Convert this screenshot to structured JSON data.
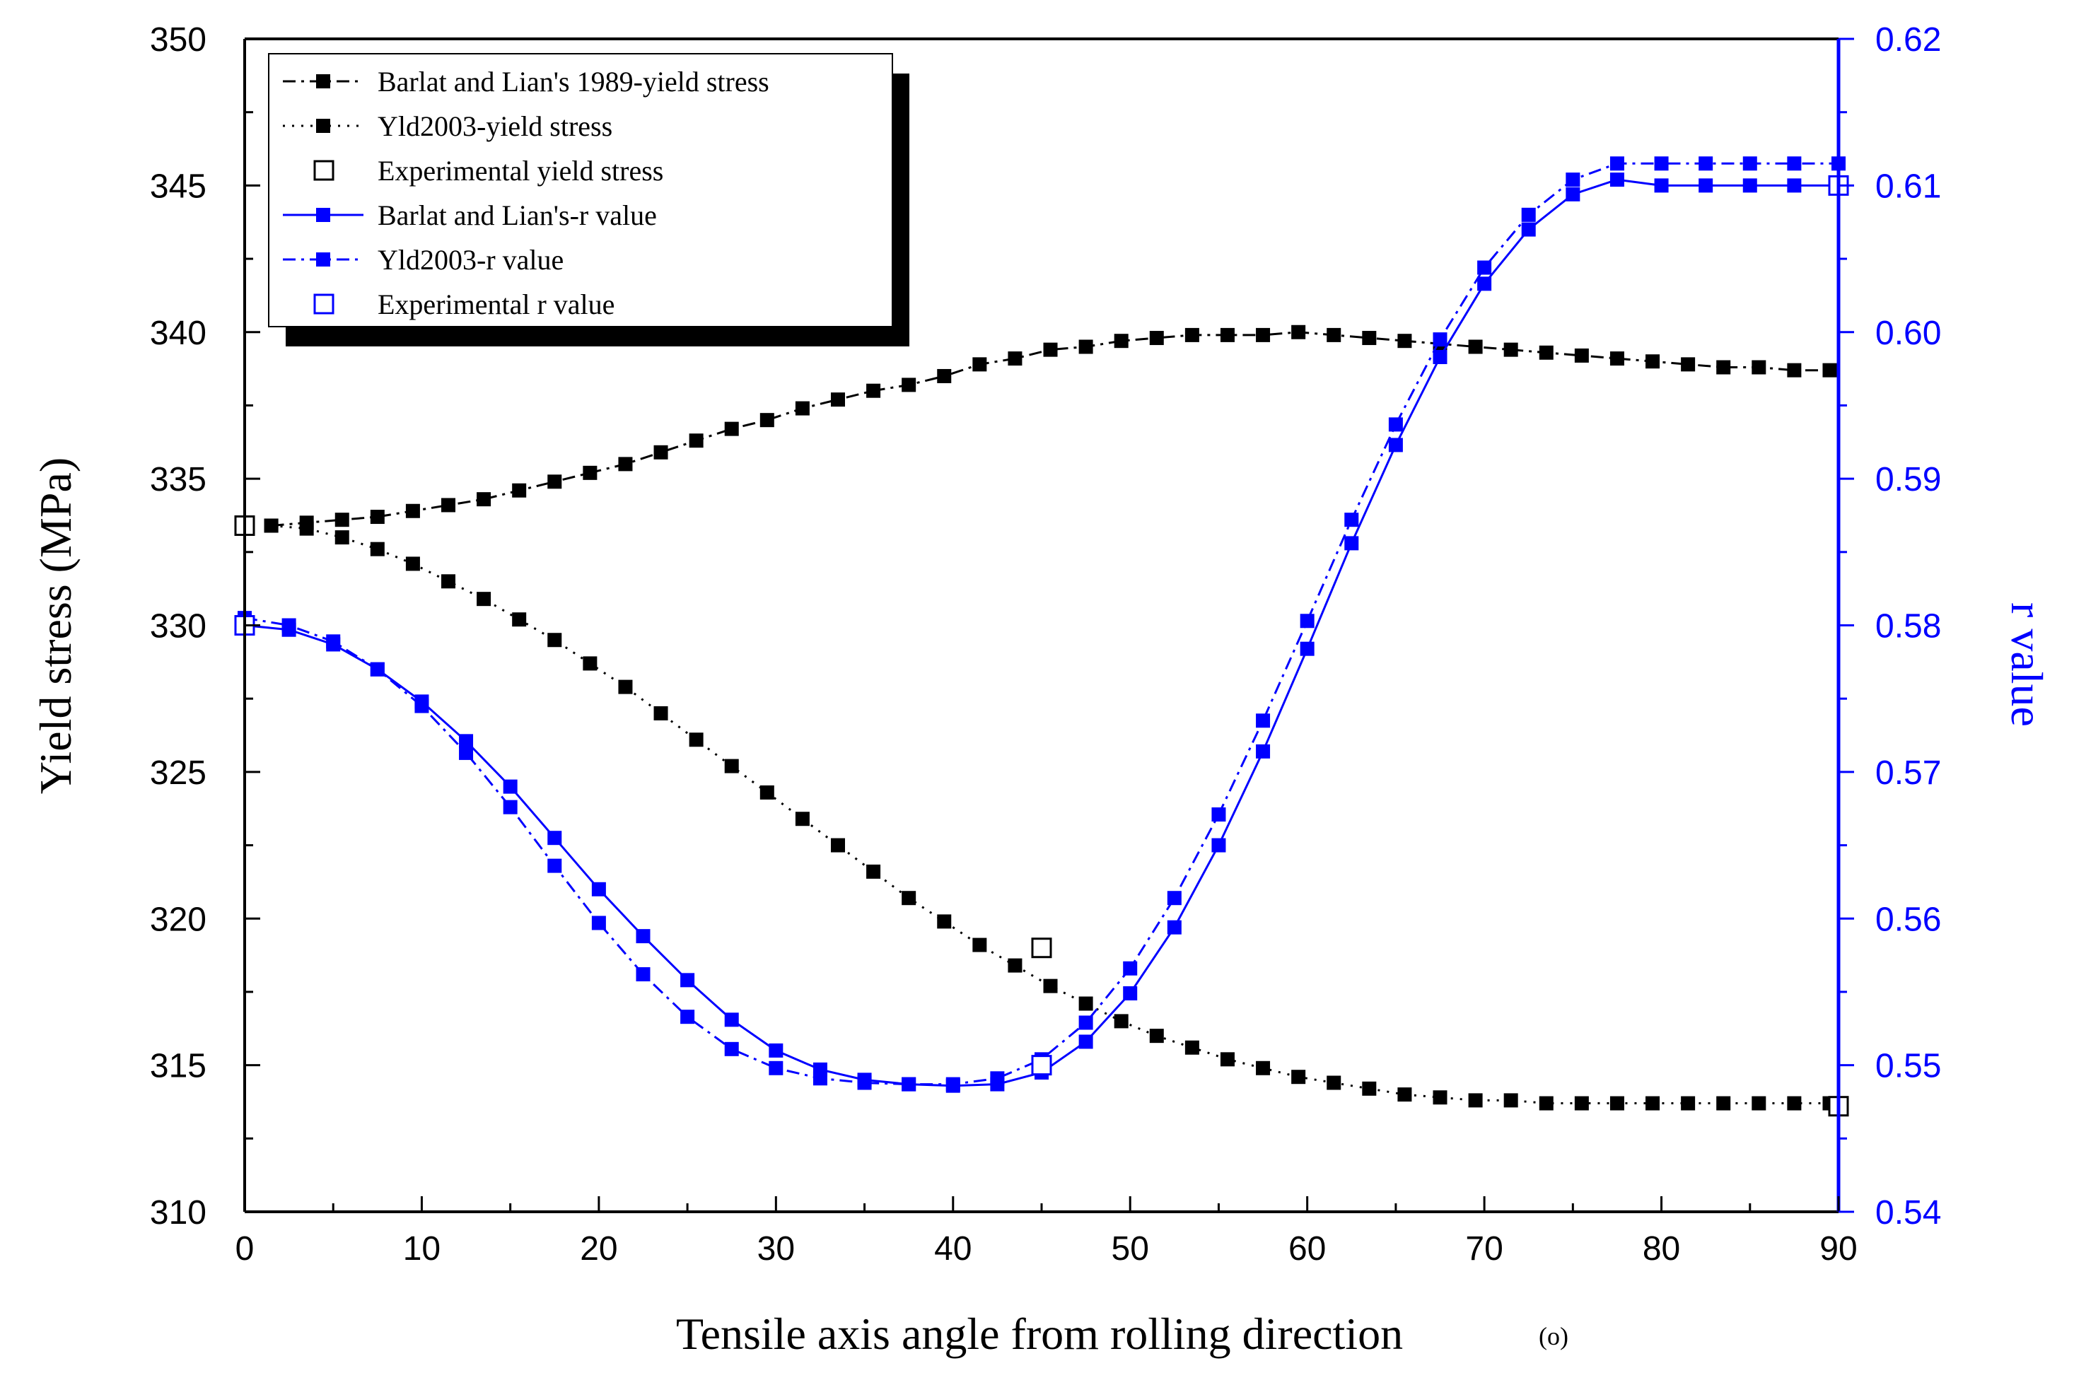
{
  "chart_data": {
    "type": "line",
    "title": "",
    "xlabel": "Tensile axis angle from rolling direction",
    "xunit": "(o)",
    "ylabel": "Yield stress (MPa)",
    "y2label": "r value",
    "xlim": [
      0,
      90
    ],
    "ylim": [
      310,
      350
    ],
    "y2lim": [
      0.54,
      0.62
    ],
    "xticks": [
      0,
      10,
      20,
      30,
      40,
      50,
      60,
      70,
      80,
      90
    ],
    "yticks": [
      310,
      315,
      320,
      325,
      330,
      335,
      340,
      345,
      350
    ],
    "y2ticks": [
      "0.54",
      "0.55",
      "0.56",
      "0.57",
      "0.58",
      "0.59",
      "0.60",
      "0.61",
      "0.62"
    ],
    "grid": false,
    "legend_position": "top-left",
    "colors": {
      "black": "#000000",
      "blue": "#0000ff"
    },
    "series": [
      {
        "name": "Barlat and Lian's 1989-yield stress",
        "axis": "left",
        "color": "#000000",
        "line": "dashdot",
        "marker": "filled-square",
        "x": [
          1.5,
          3.5,
          5.5,
          7.5,
          9.5,
          11.5,
          13.5,
          15.5,
          17.5,
          19.5,
          21.5,
          23.5,
          25.5,
          27.5,
          29.5,
          31.5,
          33.5,
          35.5,
          37.5,
          39.5,
          41.5,
          43.5,
          45.5,
          47.5,
          49.5,
          51.5,
          53.5,
          55.5,
          57.5,
          59.5,
          61.5,
          63.5,
          65.5,
          67.5,
          69.5,
          71.5,
          73.5,
          75.5,
          77.5,
          79.5,
          81.5,
          83.5,
          85.5,
          87.5,
          89.5
        ],
        "y": [
          333.4,
          333.5,
          333.6,
          333.7,
          333.9,
          334.1,
          334.3,
          334.6,
          334.9,
          335.2,
          335.5,
          335.9,
          336.3,
          336.7,
          337.0,
          337.4,
          337.7,
          338.0,
          338.2,
          338.5,
          338.9,
          339.1,
          339.4,
          339.5,
          339.7,
          339.8,
          339.9,
          339.9,
          339.9,
          340.0,
          339.9,
          339.8,
          339.7,
          339.6,
          339.5,
          339.4,
          339.3,
          339.2,
          339.1,
          339.0,
          338.9,
          338.8,
          338.8,
          338.7,
          338.7
        ]
      },
      {
        "name": "Yld2003-yield stress",
        "axis": "left",
        "color": "#000000",
        "line": "dotted",
        "marker": "filled-square",
        "x": [
          1.5,
          3.5,
          5.5,
          7.5,
          9.5,
          11.5,
          13.5,
          15.5,
          17.5,
          19.5,
          21.5,
          23.5,
          25.5,
          27.5,
          29.5,
          31.5,
          33.5,
          35.5,
          37.5,
          39.5,
          41.5,
          43.5,
          45.5,
          47.5,
          49.5,
          51.5,
          53.5,
          55.5,
          57.5,
          59.5,
          61.5,
          63.5,
          65.5,
          67.5,
          69.5,
          71.5,
          73.5,
          75.5,
          77.5,
          79.5,
          81.5,
          83.5,
          85.5,
          87.5,
          89.5
        ],
        "y": [
          333.4,
          333.3,
          333.0,
          332.6,
          332.1,
          331.5,
          330.9,
          330.2,
          329.5,
          328.7,
          327.9,
          327.0,
          326.1,
          325.2,
          324.3,
          323.4,
          322.5,
          321.6,
          320.7,
          319.9,
          319.1,
          318.4,
          317.7,
          317.1,
          316.5,
          316.0,
          315.6,
          315.2,
          314.9,
          314.6,
          314.4,
          314.2,
          314.0,
          313.9,
          313.8,
          313.8,
          313.7,
          313.7,
          313.7,
          313.7,
          313.7,
          313.7,
          313.7,
          313.7,
          313.7
        ]
      },
      {
        "name": "Experimental yield stress",
        "axis": "left",
        "color": "#000000",
        "line": "none",
        "marker": "open-square",
        "x": [
          0,
          45,
          90
        ],
        "y": [
          333.4,
          319.0,
          313.6
        ]
      },
      {
        "name": "Barlat and Lian's-r value",
        "axis": "right",
        "color": "#0000ff",
        "line": "solid",
        "marker": "filled-square",
        "x": [
          0,
          2.5,
          5,
          7.5,
          10,
          12.5,
          15,
          17.5,
          20,
          22.5,
          25,
          27.5,
          30,
          32.5,
          35,
          37.5,
          40,
          42.5,
          45,
          47.5,
          50,
          52.5,
          55,
          57.5,
          60,
          62.5,
          65,
          67.5,
          70,
          72.5,
          75,
          77.5,
          80,
          82.5,
          85,
          87.5,
          90
        ],
        "y": [
          0.58,
          0.5797,
          0.5787,
          0.577,
          0.5748,
          0.5721,
          0.569,
          0.5655,
          0.562,
          0.5588,
          0.5558,
          0.5531,
          0.551,
          0.5497,
          0.549,
          0.5487,
          0.5486,
          0.5487,
          0.5495,
          0.5516,
          0.5549,
          0.5594,
          0.565,
          0.5714,
          0.5784,
          0.5856,
          0.5923,
          0.5983,
          0.6033,
          0.607,
          0.6094,
          0.6104,
          0.61,
          0.61,
          0.61,
          0.61,
          0.61
        ]
      },
      {
        "name": "Yld2003-r value",
        "axis": "right",
        "color": "#0000ff",
        "line": "dashdot",
        "marker": "filled-square",
        "x": [
          0,
          2.5,
          5,
          7.5,
          10,
          12.5,
          15,
          17.5,
          20,
          22.5,
          25,
          27.5,
          30,
          32.5,
          35,
          37.5,
          40,
          42.5,
          45,
          47.5,
          50,
          52.5,
          55,
          57.5,
          60,
          62.5,
          65,
          67.5,
          70,
          72.5,
          75,
          77.5,
          80,
          82.5,
          85,
          87.5,
          90
        ],
        "y": [
          0.5805,
          0.58,
          0.5789,
          0.577,
          0.5745,
          0.5713,
          0.5676,
          0.5636,
          0.5597,
          0.5562,
          0.5533,
          0.5511,
          0.5498,
          0.5491,
          0.5488,
          0.5487,
          0.5487,
          0.5491,
          0.5504,
          0.5529,
          0.5566,
          0.5614,
          0.5671,
          0.5735,
          0.5803,
          0.5872,
          0.5937,
          0.5995,
          0.6044,
          0.608,
          0.6104,
          0.6115,
          0.6115,
          0.6115,
          0.6115,
          0.6115,
          0.6115
        ]
      },
      {
        "name": "Experimental r value",
        "axis": "right",
        "color": "#0000ff",
        "line": "none",
        "marker": "open-square",
        "x": [
          0,
          45,
          90
        ],
        "y": [
          0.58,
          0.55,
          0.61
        ]
      }
    ]
  }
}
